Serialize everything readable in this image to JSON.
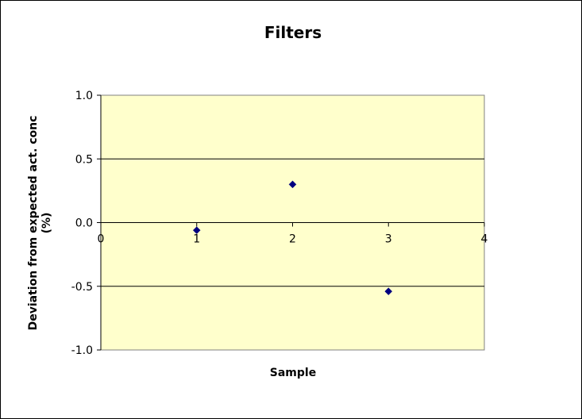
{
  "chart_data": {
    "type": "scatter",
    "title": "Filters",
    "xlabel": "Sample",
    "ylabel_lines": [
      "Deviation from expected act. conc",
      "(%)"
    ],
    "xlim": [
      0,
      4
    ],
    "ylim": [
      -1.0,
      1.0
    ],
    "xticks": [
      0,
      1,
      2,
      3,
      4
    ],
    "xtick_labels": [
      "0",
      "1",
      "2",
      "3",
      "4"
    ],
    "yticks": [
      1.0,
      0.5,
      0.0,
      -0.5,
      -1.0
    ],
    "ytick_labels": [
      "1.0",
      "0.5",
      "0.0",
      "-0.5",
      "-1.0"
    ],
    "grid": "horizontal major",
    "plot_background": "#FFFFCC",
    "marker_color": "#000080",
    "marker": "diamond",
    "points": [
      {
        "x": 1,
        "y": -0.06
      },
      {
        "x": 2,
        "y": 0.3
      },
      {
        "x": 3,
        "y": -0.54
      }
    ]
  }
}
